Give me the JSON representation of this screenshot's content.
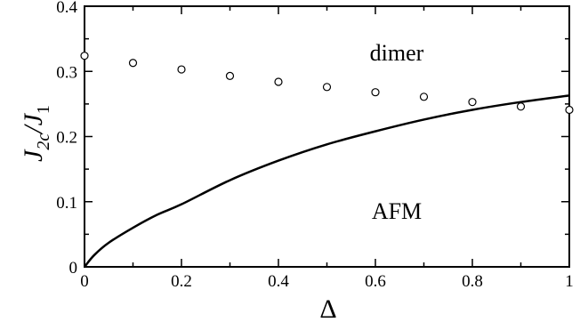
{
  "chart_data": {
    "type": "line",
    "title": "",
    "xlabel": "Δ",
    "ylabel": {
      "main": "J",
      "sub1": "2c",
      "slash": "/J",
      "sub2": "1"
    },
    "xlim": [
      0,
      1
    ],
    "ylim": [
      0,
      0.4
    ],
    "x_ticks": [
      0,
      0.2,
      0.4,
      0.6,
      0.8,
      1
    ],
    "x_tick_labels": [
      "0",
      "0.2",
      "0.4",
      "0.6",
      "0.8",
      "1"
    ],
    "y_ticks": [
      0,
      0.1,
      0.2,
      0.3,
      0.4
    ],
    "y_tick_labels": [
      "0",
      "0.1",
      "0.2",
      "0.3",
      "0.4"
    ],
    "grid": false,
    "legend": "none",
    "series": [
      {
        "style": "solid-line",
        "x": [
          0,
          0.02,
          0.05,
          0.1,
          0.15,
          0.2,
          0.3,
          0.4,
          0.5,
          0.6,
          0.7,
          0.8,
          0.9,
          1.0
        ],
        "y": [
          0,
          0.018,
          0.037,
          0.06,
          0.08,
          0.096,
          0.133,
          0.163,
          0.188,
          0.208,
          0.226,
          0.241,
          0.253,
          0.263
        ]
      },
      {
        "style": "open-circles",
        "x": [
          0,
          0.1,
          0.2,
          0.3,
          0.4,
          0.5,
          0.6,
          0.7,
          0.8,
          0.9,
          1.0
        ],
        "y": [
          0.324,
          0.313,
          0.303,
          0.293,
          0.284,
          0.276,
          0.268,
          0.261,
          0.253,
          0.246,
          0.241
        ]
      }
    ],
    "annotations": [
      {
        "text": "dimer",
        "x": 0.67,
        "y": 0.325
      },
      {
        "text": "AFM",
        "x": 0.67,
        "y": 0.08
      }
    ]
  }
}
